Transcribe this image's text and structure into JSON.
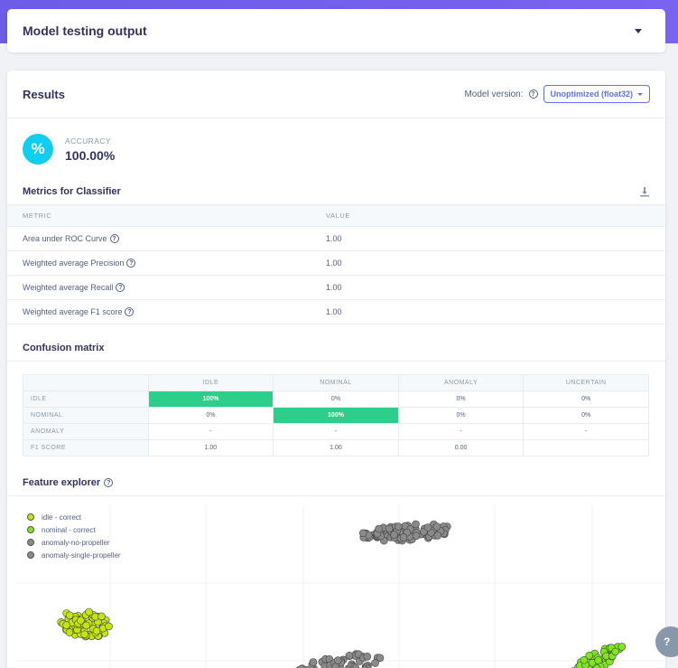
{
  "header": {
    "title": "Model testing output"
  },
  "results": {
    "title": "Results",
    "version_label": "Model version:",
    "version_value": "Unoptimized (float32)"
  },
  "accuracy": {
    "symbol": "%",
    "label": "ACCURACY",
    "value": "100.00%"
  },
  "metrics": {
    "title": "Metrics for Classifier",
    "columns": [
      "METRIC",
      "VALUE"
    ],
    "rows": [
      {
        "metric": "Area under ROC Curve",
        "value": "1.00"
      },
      {
        "metric": "Weighted average Precision",
        "value": "1.00"
      },
      {
        "metric": "Weighted average Recall",
        "value": "1.00"
      },
      {
        "metric": "Weighted average F1 score",
        "value": "1.00"
      }
    ]
  },
  "confusion": {
    "title": "Confusion matrix",
    "columns": [
      "IDLE",
      "NOMINAL",
      "ANOMALY",
      "UNCERTAIN"
    ],
    "rows": [
      {
        "label": "IDLE",
        "cells": [
          "100%",
          "0%",
          "0%",
          "0%"
        ]
      },
      {
        "label": "NOMINAL",
        "cells": [
          "0%",
          "100%",
          "0%",
          "0%"
        ]
      },
      {
        "label": "ANOMALY",
        "cells": [
          "-",
          "-",
          "-",
          "-"
        ]
      },
      {
        "label": "F1 SCORE",
        "cells": [
          "1.00",
          "1.00",
          "0.00",
          ""
        ]
      }
    ]
  },
  "feature_explorer": {
    "title": "Feature explorer",
    "legend": [
      {
        "label": "idle - correct",
        "color": "#c3e60e"
      },
      {
        "label": "nominal - correct",
        "color": "#7de61e"
      },
      {
        "label": "anomaly-no-propeller",
        "color": "#8a8a8a"
      },
      {
        "label": "anomaly-single-propeller",
        "color": "#8a8a8a"
      }
    ]
  },
  "colors": {
    "accent": "#5e72e4",
    "success": "#2dce89",
    "info": "#11cdef",
    "brand_gradient": "#6c5ce7"
  },
  "help_fab": {
    "symbol": "?"
  }
}
